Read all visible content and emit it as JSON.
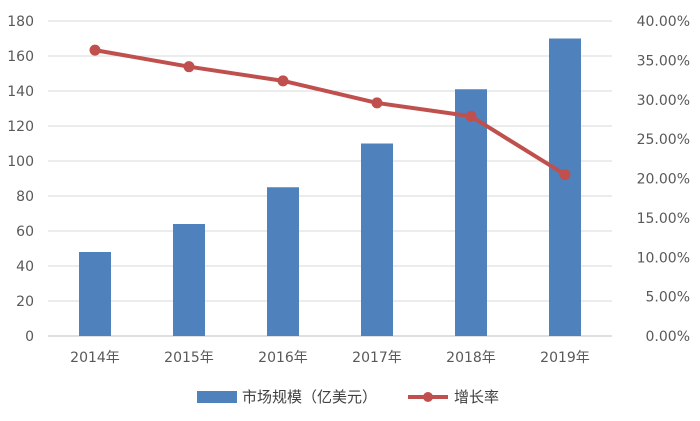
{
  "chart_data": {
    "type": "bar",
    "categories": [
      "2014年",
      "2015年",
      "2016年",
      "2017年",
      "2018年",
      "2019年"
    ],
    "series": [
      {
        "name": "市场规模（亿美元）",
        "type": "bar",
        "axis": "left",
        "values": [
          48,
          64,
          85,
          110,
          141,
          170
        ],
        "color": "#4f81bd"
      },
      {
        "name": "增长率",
        "type": "line",
        "axis": "right",
        "values": [
          36.3,
          34.2,
          32.4,
          29.6,
          27.9,
          20.5
        ],
        "color": "#c0504d"
      }
    ],
    "y_left": {
      "min": 0,
      "max": 180,
      "step": 20,
      "ticks": [
        "0",
        "20",
        "40",
        "60",
        "80",
        "100",
        "120",
        "140",
        "160",
        "180"
      ]
    },
    "y_right": {
      "min": 0,
      "max": 40,
      "step": 5,
      "ticks": [
        "0.00%",
        "5.00%",
        "10.00%",
        "15.00%",
        "20.00%",
        "25.00%",
        "30.00%",
        "35.00%",
        "40.00%"
      ]
    },
    "grid": true,
    "legend_position": "bottom"
  }
}
